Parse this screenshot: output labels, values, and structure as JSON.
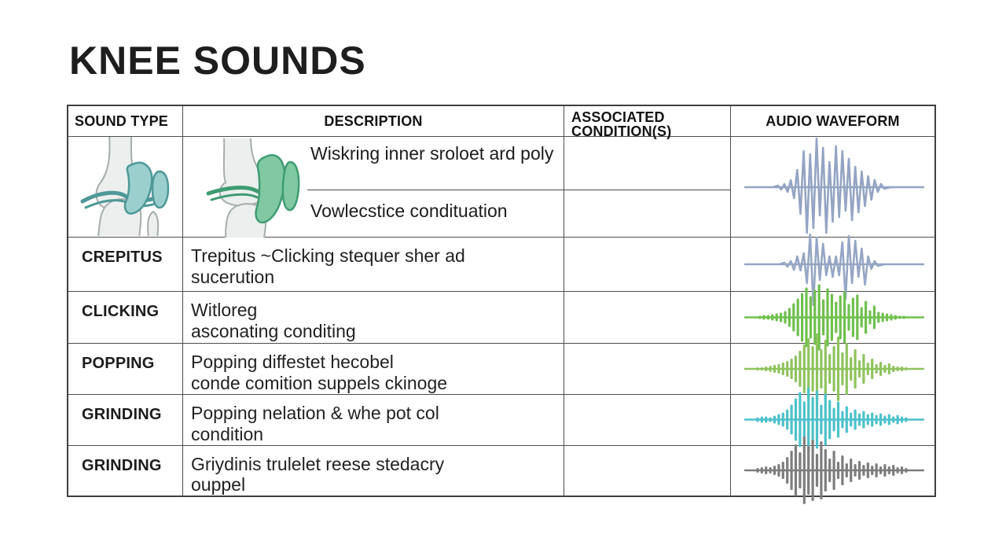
{
  "title": "KNEE SOUNDS",
  "table": {
    "headers": {
      "col1": "SOUND TYPE",
      "col2": "DESCRIPTION",
      "col3": "ASSOCIATED CONDITION(S)",
      "col4": "AUDIO WAVEFORM"
    },
    "rows": [
      {
        "sound_type": "",
        "sound_type_image": "knee-joint-illustration-teal",
        "description_image": "knee-joint-illustration-green",
        "description_line1": "Wiskring inner sroloet ard poly",
        "description_line2": "Vowlecstice condituation",
        "condition": "",
        "waveform": {
          "style": "line",
          "color": "#94a4c3",
          "amplitudes": [
            2,
            3,
            4,
            6,
            9,
            14,
            22,
            34,
            46,
            58,
            42,
            52,
            62,
            36,
            50,
            58,
            32,
            44,
            52,
            38,
            46,
            30,
            36,
            42,
            26,
            32,
            20,
            24,
            14,
            16,
            9,
            6,
            4,
            2
          ]
        }
      },
      {
        "sound_type": "CREPITUS",
        "description_line1": "Trepitus  ~Clicking stequer sher ad",
        "description_line2": "sucerution",
        "condition": "",
        "waveform": {
          "style": "line",
          "color": "#96a6c4",
          "amplitudes": [
            2,
            3,
            4,
            7,
            10,
            8,
            14,
            24,
            38,
            52,
            34,
            20,
            26,
            14,
            10,
            16,
            10,
            14,
            28,
            44,
            36,
            24,
            30,
            16,
            20,
            26,
            10,
            6,
            4,
            2
          ]
        }
      },
      {
        "sound_type": "CLICKING",
        "description_line1": "Witloreg",
        "description_line2": "asconating  conditing",
        "condition": "",
        "waveform": {
          "style": "bars",
          "color": "#6fc04d",
          "amplitudes": [
            2,
            3,
            3,
            4,
            5,
            6,
            8,
            12,
            18,
            24,
            31,
            38,
            27,
            35,
            42,
            23,
            37,
            30,
            20,
            28,
            33,
            17,
            25,
            29,
            13,
            21,
            9,
            15,
            7,
            6,
            5,
            4,
            3,
            2,
            2
          ]
        }
      },
      {
        "sound_type": "POPPING",
        "description_line1": "Popping diffestet hecobel",
        "description_line2": "conde comition suppels ckinoge",
        "condition": "",
        "waveform": {
          "style": "bars",
          "color": "#8fc35e",
          "amplitudes": [
            2,
            2,
            3,
            4,
            5,
            6,
            8,
            10,
            13,
            17,
            23,
            31,
            39,
            29,
            45,
            25,
            37,
            19,
            29,
            41,
            21,
            33,
            15,
            25,
            11,
            19,
            8,
            13,
            6,
            9,
            5,
            7,
            4,
            3,
            3,
            2
          ]
        }
      },
      {
        "sound_type": "GRINDING",
        "description_line1": "Popping  nelation & whe pot col",
        "description_line2": "condition",
        "condition": "",
        "waveform": {
          "style": "bars",
          "color": "#4cc1cb",
          "amplitudes": [
            3,
            4,
            4,
            3,
            5,
            7,
            9,
            13,
            19,
            27,
            35,
            23,
            41,
            29,
            37,
            19,
            33,
            25,
            15,
            23,
            11,
            17,
            9,
            13,
            8,
            11,
            7,
            9,
            6,
            8,
            5,
            7,
            4,
            6,
            4,
            3
          ]
        }
      },
      {
        "sound_type": "GRINDING",
        "description_line1": "Griydinis trulelet reese stedacry",
        "description_line2": "ouppel",
        "condition": "",
        "waveform": {
          "style": "bars",
          "color": "#7d7d7d",
          "amplitudes": [
            3,
            4,
            5,
            4,
            6,
            8,
            11,
            17,
            25,
            33,
            23,
            43,
            31,
            39,
            21,
            37,
            27,
            15,
            25,
            11,
            19,
            9,
            15,
            8,
            12,
            7,
            10,
            6,
            9,
            5,
            8,
            5,
            7,
            4,
            5,
            3
          ]
        }
      }
    ]
  },
  "illustration_colors": {
    "bone_fill": "#ecefee",
    "bone_stroke": "#a6adad",
    "teal_fill": "#9bcfcd",
    "teal_stroke": "#4f9898",
    "green_fill": "#80c9a2",
    "green_stroke": "#3f9c72"
  }
}
